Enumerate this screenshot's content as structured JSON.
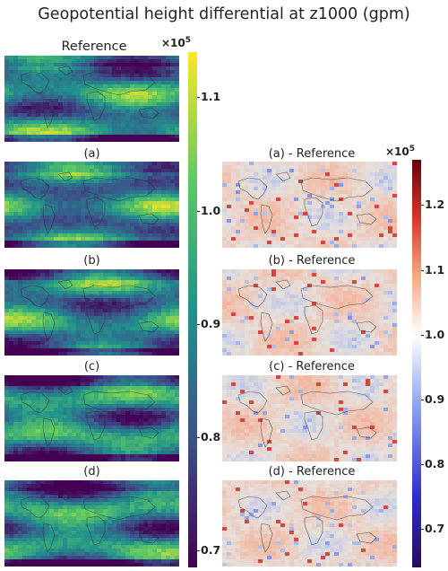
{
  "title": "Geopotential height differential at z1000 (gpm)",
  "colors": {
    "viridis": [
      "#440154",
      "#3b528b",
      "#21918c",
      "#5ec962",
      "#fde725"
    ],
    "coolwarm": [
      "#2a0a5e",
      "#2b2bc8",
      "#7f9bf0",
      "#ffffff",
      "#f4a582",
      "#d6322c",
      "#67000d"
    ],
    "land_line": "#2a2a2a"
  },
  "chart_data": [
    {
      "type": "heatmap",
      "panels": [
        "Reference",
        "(a)",
        "(b)",
        "(c)",
        "(d)"
      ],
      "colormap": "viridis",
      "colorbar": {
        "multiplier": "×10",
        "multiplier_exp": "5",
        "ticks": [
          0.7,
          0.8,
          0.9,
          1.0,
          1.1
        ],
        "tick_labels": [
          "0.7",
          "0.8",
          "0.9",
          "1.0",
          "1.1"
        ],
        "range": [
          0.685,
          1.14
        ]
      }
    },
    {
      "type": "heatmap",
      "panels": [
        "(a) - Reference",
        "(b) - Reference",
        "(c) - Reference",
        "(d) - Reference"
      ],
      "colormap": "coolwarm",
      "colorbar": {
        "multiplier": "×10",
        "multiplier_exp": "5",
        "ticks": [
          0.7,
          0.8,
          0.9,
          1.0,
          1.1,
          1.2
        ],
        "tick_labels": [
          "0.7",
          "0.8",
          "0.9",
          "1.0",
          "1.1",
          "1.2"
        ],
        "range": [
          0.64,
          1.27
        ]
      }
    }
  ]
}
